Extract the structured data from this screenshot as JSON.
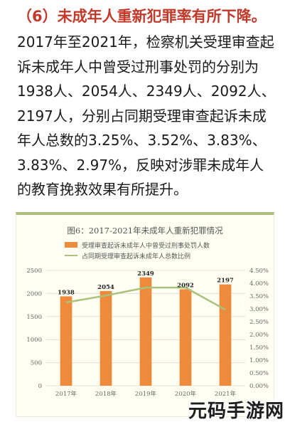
{
  "heading": "（6）未成年人重新犯罪率有所下降。",
  "paragraph_lines": [
    "2017年至2021年，检察机关受理审查起",
    "诉未成年人中曾受过刑事处罚的分别为",
    "1938人、2054人、2349人、2092人、",
    "2197人，分别占同期受理审查起诉未成",
    "年人总数的3.25%、3.52%、3.83%、",
    "3.83%、2.97%，反映对涉罪未成年人",
    "的教育挽救效果有所提升。"
  ],
  "watermark": "元码手游网",
  "chart_data": {
    "type": "bar",
    "title": "图6：2017-2021年未成年人重新犯罪情况",
    "categories": [
      "2017年",
      "2018年",
      "2019年",
      "2020年",
      "2021年"
    ],
    "series": [
      {
        "name": "受理审查起诉未成年人中曾受过刑事处罚人数",
        "type": "bar",
        "axis": "left",
        "values": [
          1938,
          2054,
          2349,
          2092,
          2197
        ],
        "data_labels": [
          "1938",
          "2054",
          "2349",
          "2092",
          "2197"
        ],
        "color": "#ee8a3c"
      },
      {
        "name": "占同期受理审查起诉未成年人总数比例",
        "type": "line",
        "axis": "right",
        "values": [
          3.25,
          3.52,
          3.83,
          3.83,
          2.97
        ],
        "color": "#a9c17b"
      }
    ],
    "left_axis": {
      "ylim": [
        0,
        2500
      ],
      "ticks": [
        "0",
        "500",
        "1000",
        "1500",
        "2000",
        "2500"
      ]
    },
    "right_axis": {
      "ylim": [
        0,
        4.5
      ],
      "ticks": [
        "0.00%",
        "0.50%",
        "1.00%",
        "1.50%",
        "2.00%",
        "2.50%",
        "3.00%",
        "3.50%",
        "4.00%",
        "4.50%"
      ]
    },
    "grid": true,
    "legend_position": "top"
  }
}
